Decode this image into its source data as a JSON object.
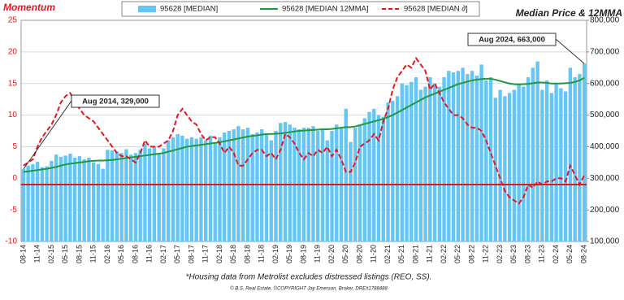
{
  "chart_data": {
    "type": "combo",
    "title_left": "Momentum",
    "title_right": "Median Price & 12MMA",
    "annotations": [
      "Aug 2014,  329,000",
      "Aug 2024,  663,000"
    ],
    "footnote": "*Housing data from Metrolist excludes distressed listings (REO, SS).",
    "credit": "© B.S. Real Estate, ©COPYRIGHT Jay Emerson, Broker, DRE#1788488",
    "categories": [
      "08-14",
      null,
      null,
      "11-14",
      null,
      null,
      "02-15",
      null,
      null,
      "05-15",
      null,
      null,
      "08-15",
      null,
      null,
      "11-15",
      null,
      null,
      "02-16",
      null,
      null,
      "05-16",
      null,
      null,
      "08-16",
      null,
      null,
      "11-16",
      null,
      null,
      "02-17",
      null,
      null,
      "05-17",
      null,
      null,
      "08-17",
      null,
      null,
      "11-17",
      null,
      null,
      "02-18",
      null,
      null,
      "05-18",
      null,
      null,
      "08-18",
      null,
      null,
      "11-18",
      null,
      null,
      "02-19",
      null,
      null,
      "05-19",
      null,
      null,
      "08-19",
      null,
      null,
      "11-19",
      null,
      null,
      "02-20",
      null,
      null,
      "05-20",
      null,
      null,
      "08-20",
      null,
      null,
      "11-20",
      null,
      null,
      "02-21",
      null,
      null,
      "05-21",
      null,
      null,
      "08-21",
      null,
      null,
      "11-21",
      null,
      null,
      "02-22",
      null,
      null,
      "05-22",
      null,
      null,
      "08-22",
      null,
      null,
      "11-22",
      null,
      null,
      "02-23",
      null,
      null,
      "05-23",
      null,
      null,
      "08-23",
      null,
      null,
      "11-23",
      null,
      null,
      "02-24",
      null,
      null,
      "05-24",
      null,
      null,
      "08-24"
    ],
    "series": [
      {
        "name": "95628 [MEDIAN]",
        "kind": "bar",
        "axis": "y2",
        "color": "#63c6f4",
        "values": [
          329000,
          340000,
          345000,
          352000,
          335000,
          338000,
          355000,
          375000,
          368000,
          372000,
          378000,
          365000,
          370000,
          360000,
          365000,
          350000,
          345000,
          330000,
          390000,
          388000,
          385000,
          380000,
          392000,
          375000,
          380000,
          390000,
          410000,
          395000,
          400000,
          380000,
          395000,
          420000,
          430000,
          440000,
          435000,
          425000,
          430000,
          425000,
          430000,
          420000,
          435000,
          410000,
          430000,
          445000,
          450000,
          455000,
          465000,
          455000,
          460000,
          440000,
          445000,
          455000,
          440000,
          420000,
          450000,
          475000,
          478000,
          470000,
          460000,
          455000,
          460000,
          460000,
          465000,
          450000,
          455000,
          420000,
          450000,
          470000,
          460000,
          520000,
          415000,
          460000,
          470000,
          490000,
          510000,
          520000,
          500000,
          495000,
          540000,
          545000,
          560000,
          600000,
          595000,
          605000,
          620000,
          580000,
          590000,
          620000,
          600000,
          590000,
          620000,
          640000,
          635000,
          640000,
          650000,
          630000,
          640000,
          625000,
          660000,
          610000,
          620000,
          555000,
          580000,
          560000,
          570000,
          580000,
          600000,
          590000,
          620000,
          650000,
          670000,
          580000,
          610000,
          570000,
          600000,
          585000,
          575000,
          650000,
          620000,
          630000,
          663000
        ]
      },
      {
        "name": "95628 [MEDIAN 12MMA]",
        "kind": "line",
        "axis": "y2",
        "color": "#1e9a3c",
        "values": [
          320000,
          322000,
          324000,
          326000,
          328000,
          330000,
          333000,
          336000,
          340000,
          344000,
          346000,
          348000,
          350000,
          352000,
          354000,
          355000,
          356000,
          356000,
          357000,
          358000,
          360000,
          362000,
          364000,
          366000,
          368000,
          370000,
          372000,
          374000,
          376000,
          378000,
          380000,
          384000,
          388000,
          392000,
          396000,
          400000,
          402000,
          404000,
          406000,
          408000,
          410000,
          412000,
          414000,
          417000,
          420000,
          423000,
          426000,
          429000,
          432000,
          434000,
          436000,
          438000,
          440000,
          440000,
          441000,
          442000,
          444000,
          446000,
          448000,
          450000,
          451000,
          452000,
          453000,
          454000,
          455000,
          455000,
          456000,
          458000,
          460000,
          462000,
          462000,
          464000,
          468000,
          472000,
          476000,
          480000,
          484000,
          488000,
          494000,
          500000,
          508000,
          516000,
          524000,
          532000,
          540000,
          548000,
          556000,
          562000,
          568000,
          574000,
          580000,
          586000,
          592000,
          598000,
          602000,
          606000,
          610000,
          612000,
          614000,
          615000,
          615000,
          612000,
          608000,
          604000,
          600000,
          598000,
          597000,
          598000,
          599000,
          601000,
          603000,
          603000,
          602000,
          600000,
          600000,
          600000,
          601000,
          602000,
          605000,
          610000,
          618000
        ]
      },
      {
        "name": "95628 [MEDIAN ∂]",
        "kind": "dashed",
        "axis": "y",
        "color": "#e8141c",
        "values": [
          2,
          2.5,
          3,
          5,
          6.5,
          7.5,
          8.5,
          10,
          12,
          13,
          13.5,
          12,
          11,
          10,
          9.5,
          9,
          8,
          7,
          6,
          5,
          4,
          3.5,
          3.5,
          3,
          2.5,
          4,
          6,
          5,
          5,
          5,
          5.5,
          6,
          7.5,
          10,
          11,
          10,
          9,
          8.5,
          7,
          6,
          6.5,
          6.5,
          5.5,
          4,
          5,
          4,
          2,
          2,
          3,
          4,
          4.5,
          4.5,
          3.5,
          4,
          3,
          4.5,
          7,
          6.5,
          5.5,
          4,
          3,
          4,
          3.5,
          4.5,
          4,
          5,
          3.5,
          4.5,
          3,
          1,
          1,
          2.5,
          5,
          5.5,
          6,
          7,
          6,
          9,
          11,
          14,
          16,
          17,
          18,
          17.5,
          19,
          18,
          17,
          14,
          15,
          13.5,
          12,
          11,
          10,
          10,
          9.5,
          8.5,
          8,
          8,
          7.5,
          6,
          4,
          2,
          0,
          -2,
          -3,
          -3.5,
          -4,
          -3,
          -1,
          -1.5,
          -0.5,
          -1,
          -0.5,
          -0.5,
          0,
          0,
          -0.5,
          2,
          0.5,
          -1,
          0.5
        ]
      }
    ],
    "reference_line": {
      "value": -1,
      "color": "#e8141c"
    },
    "ylim": [
      -10,
      25
    ],
    "yticks": [
      -10,
      -5,
      0,
      5,
      10,
      15,
      20,
      25
    ],
    "y2lim": [
      100000,
      800000
    ],
    "y2ticks": [
      {
        "value": 100000,
        "label": "100,000"
      },
      {
        "value": 200000,
        "label": "200,000"
      },
      {
        "value": 300000,
        "label": "300,000"
      },
      {
        "value": 400000,
        "label": "400,000"
      },
      {
        "value": 500000,
        "label": "500,000"
      },
      {
        "value": 600000,
        "label": "600,000"
      },
      {
        "value": 700000,
        "label": "700,000"
      },
      {
        "value": 800000,
        "label": "800,000"
      }
    ],
    "grid": true
  }
}
